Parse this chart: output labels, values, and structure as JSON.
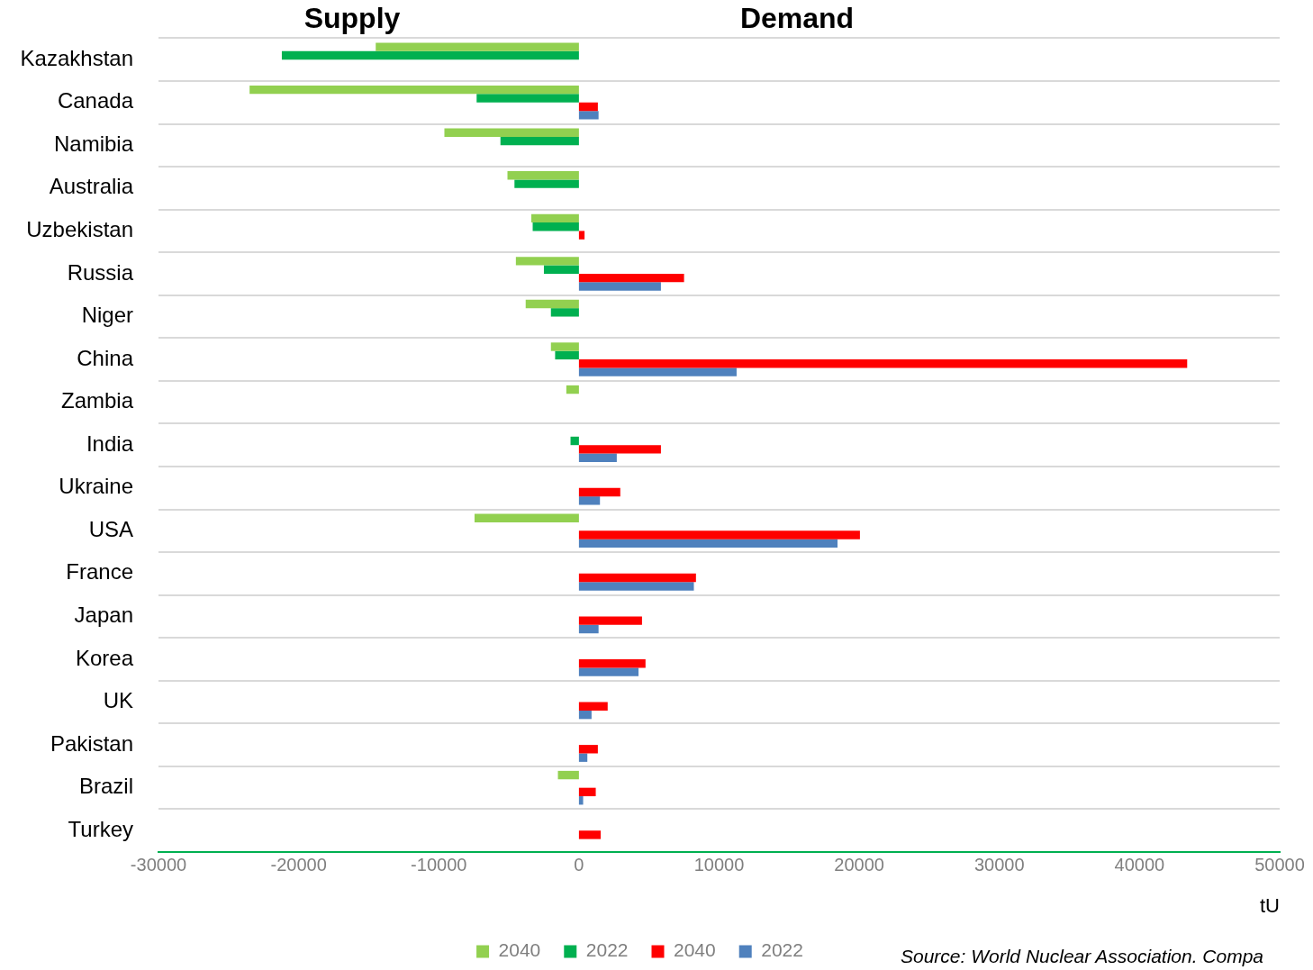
{
  "chart_data": {
    "type": "bar",
    "orientation": "horizontal",
    "xlabel": "tU",
    "annotations": [
      "Supply",
      "Demand",
      "Source: World Nuclear Association. Compa"
    ],
    "categories": [
      "Kazakhstan",
      "Canada",
      "Namibia",
      "Australia",
      "Uzbekistan",
      "Russia",
      "Niger",
      "China",
      "Zambia",
      "India",
      "Ukraine",
      "USA",
      "France",
      "Japan",
      "Korea",
      "UK",
      "Pakistan",
      "Brazil",
      "Turkey"
    ],
    "series": [
      {
        "name": "2040",
        "color": "#92d050",
        "values": [
          -14500,
          -23500,
          -9600,
          -5100,
          -3400,
          -4500,
          -3800,
          -2000,
          -900,
          null,
          null,
          -7450,
          null,
          null,
          null,
          null,
          null,
          -1500,
          null
        ]
      },
      {
        "name": "2022",
        "color": "#00b050",
        "values": [
          -21200,
          -7300,
          -5600,
          -4600,
          -3300,
          -2500,
          -2000,
          -1700,
          null,
          -600,
          null,
          null,
          null,
          null,
          null,
          null,
          null,
          null,
          null
        ]
      },
      {
        "name": "2040",
        "color": "#ff0000",
        "values": [
          null,
          1350,
          null,
          null,
          400,
          7500,
          null,
          43400,
          null,
          5850,
          2950,
          20050,
          8350,
          4500,
          4750,
          2050,
          1350,
          1200,
          1550
        ]
      },
      {
        "name": "2022",
        "color": "#4f81bd",
        "values": [
          null,
          1400,
          null,
          null,
          null,
          5850,
          null,
          11250,
          null,
          2700,
          1500,
          18450,
          8200,
          1400,
          4250,
          900,
          600,
          300,
          null
        ]
      }
    ],
    "xlim": [
      -30000,
      50000
    ],
    "xticks": [
      -30000,
      -20000,
      -10000,
      0,
      10000,
      20000,
      30000,
      40000,
      50000
    ],
    "grid": "y",
    "legend": "bottom"
  }
}
